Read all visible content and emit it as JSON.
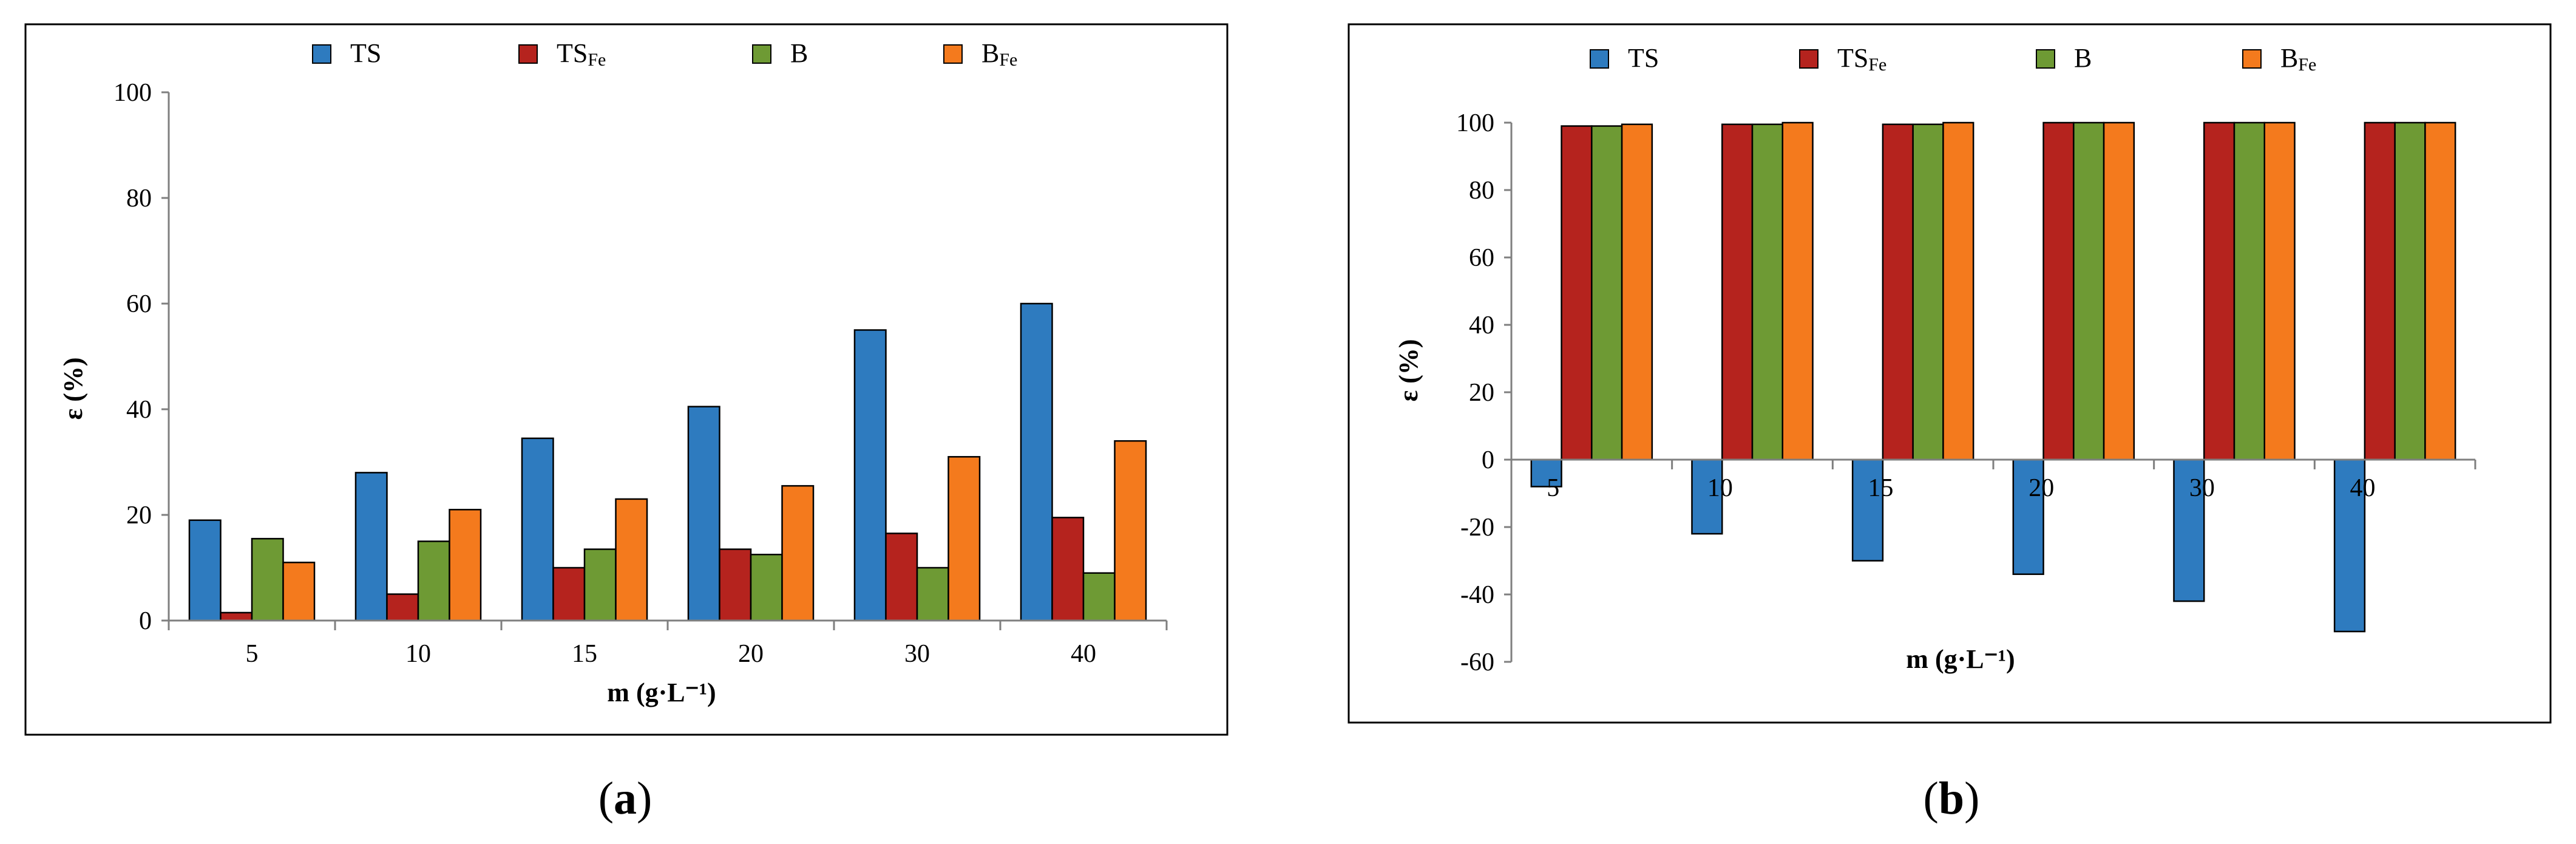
{
  "chart_data": [
    {
      "type": "bar",
      "panel": "a",
      "title": "",
      "xlabel": "m (g·L⁻¹)",
      "ylabel": "ε (%)",
      "ylim": [
        0,
        100
      ],
      "yticks": [
        0,
        20,
        40,
        60,
        80,
        100
      ],
      "categories": [
        "5",
        "10",
        "15",
        "20",
        "30",
        "40"
      ],
      "legend_position": "top",
      "series": [
        {
          "name": "TS",
          "sub": "",
          "color": "#2e7bbf",
          "values": [
            19,
            28,
            34.5,
            40.5,
            55,
            60
          ]
        },
        {
          "name": "TS",
          "sub": "Fe",
          "color": "#b5231e",
          "values": [
            1.5,
            5,
            10,
            13.5,
            16.5,
            19.5
          ]
        },
        {
          "name": "B",
          "sub": "",
          "color": "#6e9a34",
          "values": [
            15.5,
            15,
            13.5,
            12.5,
            10,
            9
          ]
        },
        {
          "name": "B",
          "sub": "Fe",
          "color": "#f47a1d",
          "values": [
            11,
            21,
            23,
            25.5,
            31,
            34
          ]
        }
      ]
    },
    {
      "type": "bar",
      "panel": "b",
      "title": "",
      "xlabel": "m (g·L⁻¹)",
      "ylabel": "ε (%)",
      "ylim": [
        -60,
        100
      ],
      "yticks": [
        -60,
        -40,
        -20,
        0,
        20,
        40,
        60,
        80,
        100
      ],
      "categories": [
        "5",
        "10",
        "15",
        "20",
        "30",
        "40"
      ],
      "legend_position": "top",
      "series": [
        {
          "name": "TS",
          "sub": "",
          "color": "#2e7bbf",
          "values": [
            -8,
            -22,
            -30,
            -34,
            -42,
            -51
          ]
        },
        {
          "name": "TS",
          "sub": "Fe",
          "color": "#b5231e",
          "values": [
            99,
            99.5,
            99.5,
            100,
            100,
            100
          ]
        },
        {
          "name": "B",
          "sub": "",
          "color": "#6e9a34",
          "values": [
            99,
            99.5,
            99.5,
            100,
            100,
            100
          ]
        },
        {
          "name": "B",
          "sub": "Fe",
          "color": "#f47a1d",
          "values": [
            99.5,
            100,
            100,
            100,
            100,
            100
          ]
        }
      ]
    }
  ],
  "captions": {
    "a": {
      "open": "(",
      "letter": "a",
      "close": ")"
    },
    "b": {
      "open": "(",
      "letter": "b",
      "close": ")"
    }
  }
}
